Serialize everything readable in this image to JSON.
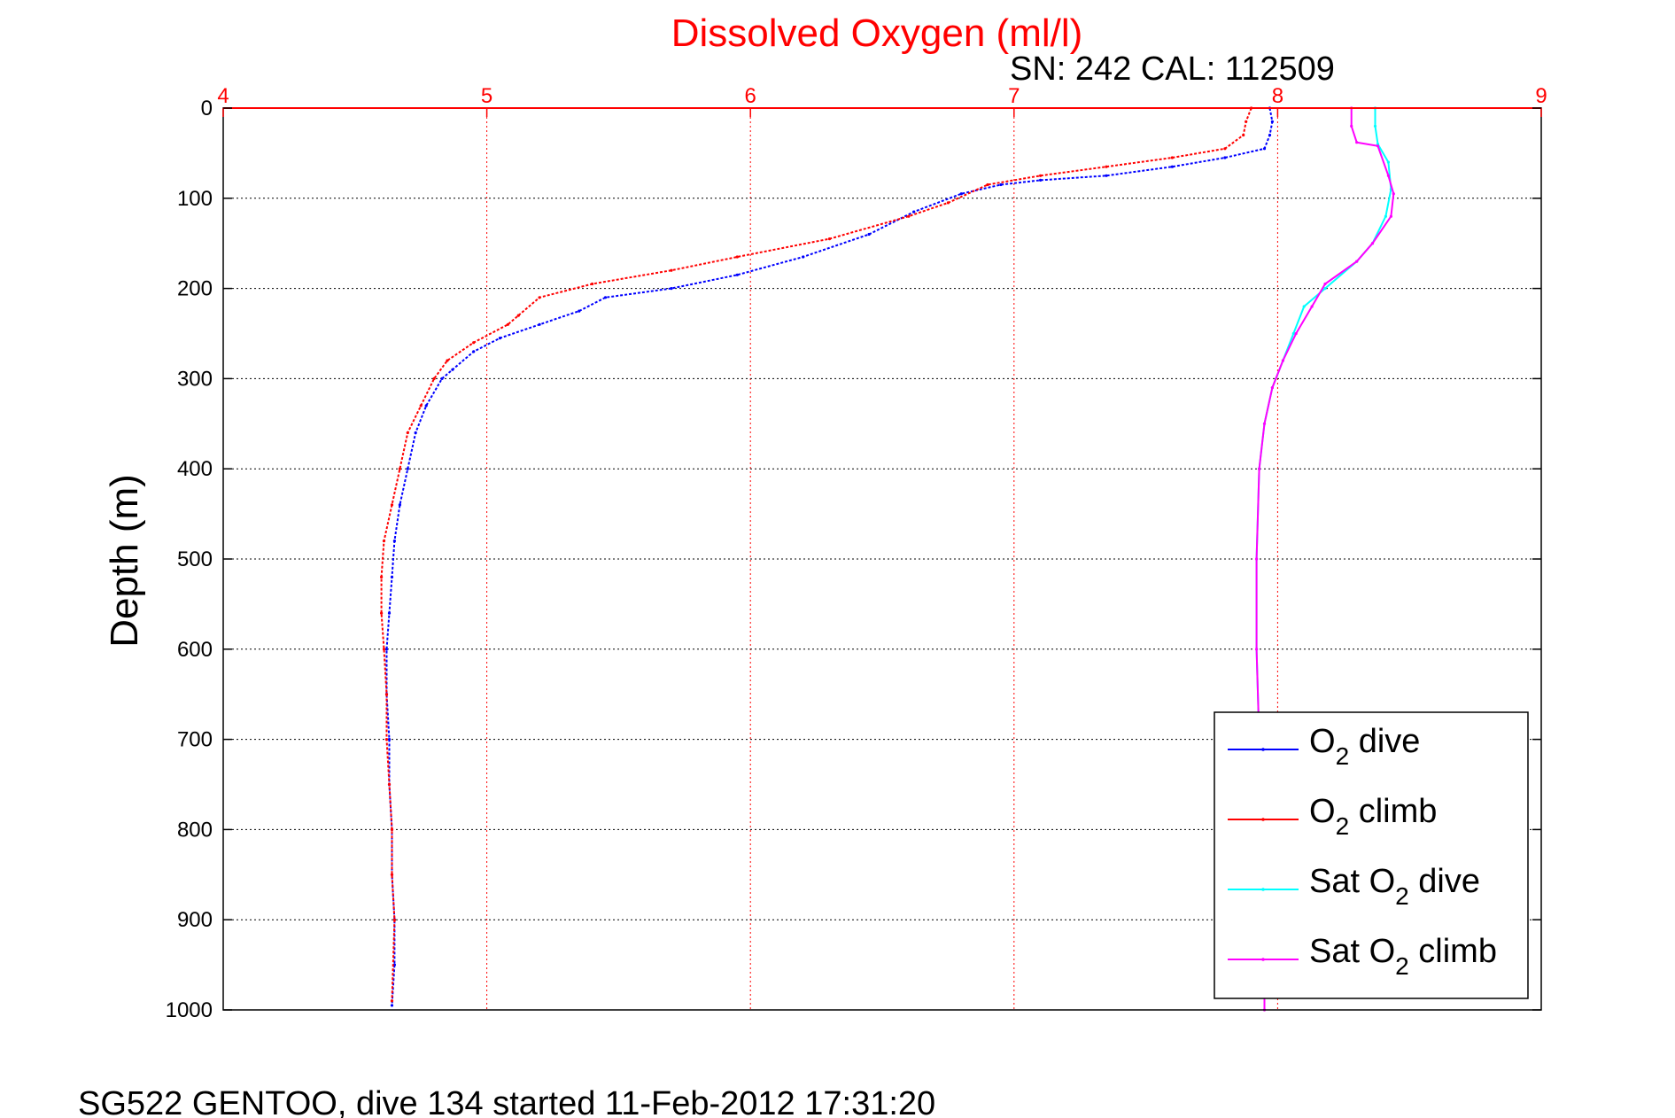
{
  "chart_data": {
    "type": "line",
    "title": "Dissolved Oxygen (ml/l)",
    "subtitle": "SN: 242  CAL: 112509",
    "ylabel": "Depth (m)",
    "footer": "SG522 GENTOO, dive 134 started 11-Feb-2012 17:31:20",
    "x_axis_position": "top",
    "y_axis_reversed": true,
    "xlim": [
      4,
      9
    ],
    "ylim": [
      0,
      1000
    ],
    "x_ticks": [
      "4",
      "5",
      "6",
      "7",
      "8",
      "9"
    ],
    "y_ticks": [
      "0",
      "100",
      "200",
      "300",
      "400",
      "500",
      "600",
      "700",
      "800",
      "900",
      "1000"
    ],
    "grid": true,
    "legend_position": "bottom-right",
    "colors": {
      "title": "#ff0000",
      "x_axis": "#ff0000",
      "y_axis": "#000000",
      "grid": "#000000"
    },
    "series": [
      {
        "name": "O2 dive",
        "legend_main": "O",
        "legend_sub": "2",
        "legend_suffix": " dive",
        "legend_prefix": "",
        "color": "#0000ff",
        "x": [
          7.97,
          7.98,
          7.97,
          7.95,
          7.8,
          7.6,
          7.35,
          7.1,
          6.95,
          6.8,
          6.62,
          6.45,
          6.2,
          5.95,
          5.7,
          5.45,
          5.35,
          5.2,
          5.05,
          4.95,
          4.87,
          4.83,
          4.77,
          4.73,
          4.7,
          4.67,
          4.65,
          4.64,
          4.63,
          4.62,
          4.62,
          4.63,
          4.63,
          4.64,
          4.64,
          4.65,
          4.65,
          4.64
        ],
        "y": [
          0,
          15,
          30,
          45,
          55,
          65,
          75,
          80,
          85,
          95,
          115,
          140,
          165,
          185,
          200,
          210,
          225,
          240,
          255,
          270,
          290,
          300,
          330,
          360,
          400,
          440,
          480,
          520,
          560,
          600,
          650,
          700,
          750,
          800,
          850,
          900,
          950,
          995
        ]
      },
      {
        "name": "O2 climb",
        "legend_main": "O",
        "legend_sub": "2",
        "legend_suffix": " climb",
        "legend_prefix": "",
        "color": "#ff0000",
        "x": [
          7.9,
          7.88,
          7.87,
          7.8,
          7.6,
          7.35,
          7.1,
          6.9,
          6.75,
          6.6,
          6.3,
          5.95,
          5.7,
          5.4,
          5.2,
          5.12,
          5.08,
          4.95,
          4.85,
          4.8,
          4.75,
          4.7,
          4.67,
          4.64,
          4.61,
          4.6,
          4.6,
          4.61,
          4.62,
          4.62,
          4.63,
          4.64,
          4.64,
          4.65,
          4.64
        ],
        "y": [
          0,
          15,
          30,
          45,
          55,
          65,
          75,
          85,
          105,
          120,
          145,
          165,
          180,
          195,
          210,
          230,
          240,
          260,
          280,
          300,
          330,
          360,
          400,
          440,
          480,
          520,
          560,
          600,
          650,
          700,
          750,
          800,
          850,
          900,
          990
        ]
      },
      {
        "name": "Sat O2 dive",
        "legend_main": "Sat O",
        "legend_sub": "2",
        "legend_suffix": " dive",
        "legend_prefix": "",
        "color": "#00ffff",
        "x": [
          8.37,
          8.37,
          8.38,
          8.42,
          8.43,
          8.41,
          8.36,
          8.3,
          8.18,
          8.1,
          8.06,
          8.02,
          7.98,
          7.95,
          7.93,
          7.92,
          7.92,
          7.93,
          7.94,
          7.95
        ],
        "y": [
          0,
          20,
          40,
          60,
          90,
          120,
          150,
          170,
          200,
          220,
          250,
          280,
          310,
          350,
          400,
          500,
          600,
          700,
          800,
          900
        ]
      },
      {
        "name": "Sat O2 climb",
        "legend_main": "Sat O",
        "legend_sub": "2",
        "legend_suffix": " climb",
        "legend_prefix": "",
        "color": "#ff00ff",
        "x": [
          8.28,
          8.28,
          8.3,
          8.38,
          8.42,
          8.44,
          8.43,
          8.36,
          8.3,
          8.18,
          8.13,
          8.07,
          8.02,
          7.98,
          7.95,
          7.93,
          7.92,
          7.92,
          7.93,
          7.94,
          7.95,
          7.95
        ],
        "y": [
          0,
          20,
          38,
          42,
          75,
          95,
          120,
          150,
          170,
          195,
          220,
          250,
          280,
          310,
          350,
          400,
          500,
          600,
          700,
          800,
          900,
          1000
        ]
      }
    ]
  }
}
